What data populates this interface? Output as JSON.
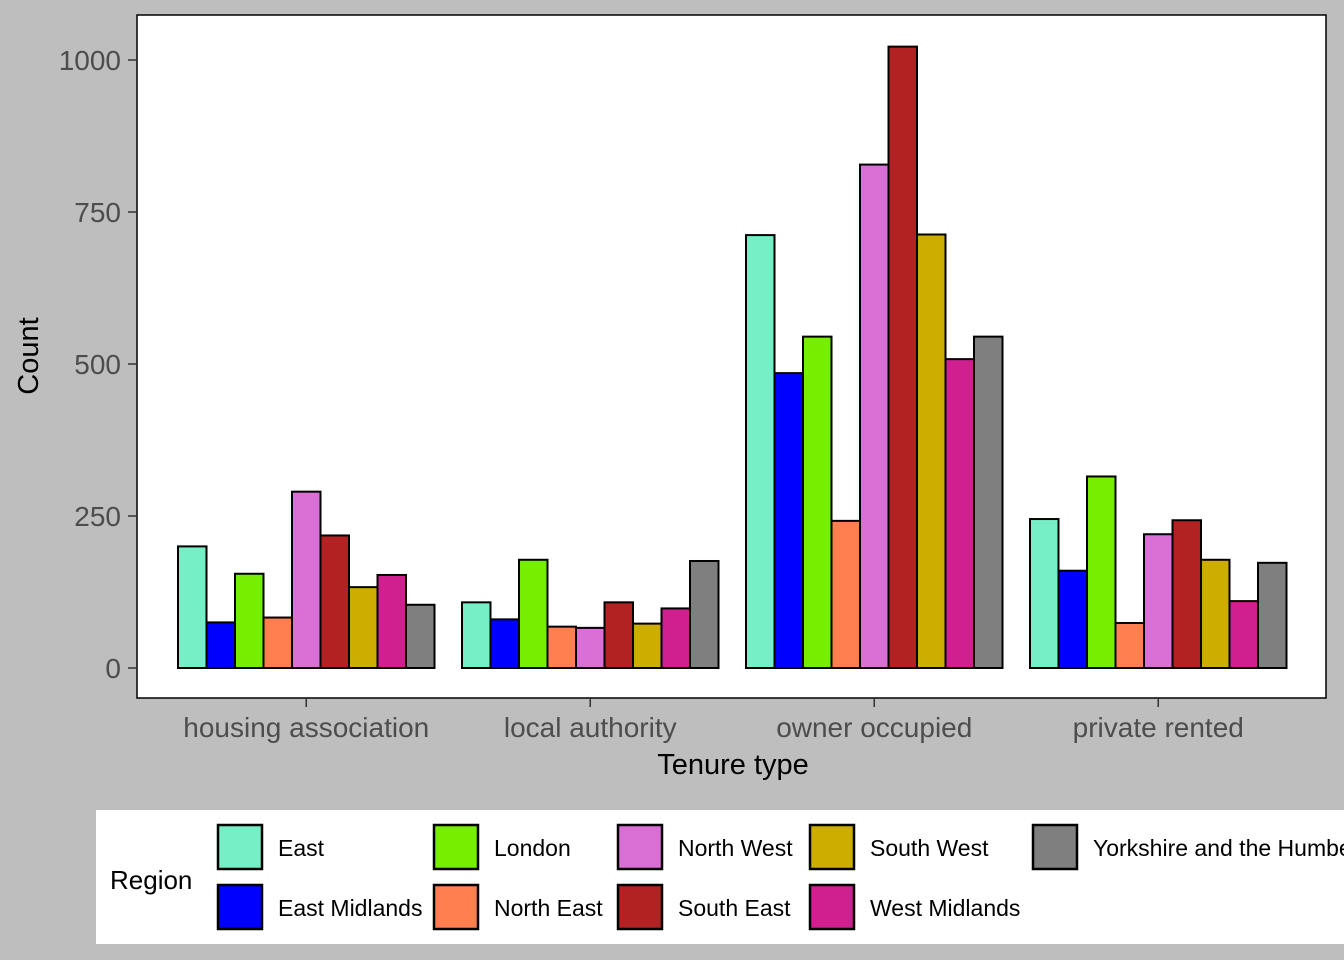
{
  "chart_data": {
    "type": "bar",
    "title": "",
    "xlabel": "Tenure type",
    "ylabel": "Count",
    "ylim": [
      -50,
      1075
    ],
    "yticks": [
      0,
      250,
      500,
      750,
      1000
    ],
    "grid": false,
    "legend_position": "bottom",
    "legend_title": "Region",
    "categories": [
      "housing association",
      "local authority",
      "owner occupied",
      "private rented"
    ],
    "series": [
      {
        "name": "East",
        "color": "#76EEC6",
        "values": [
          200,
          108,
          712,
          245
        ]
      },
      {
        "name": "East Midlands",
        "color": "#0000FF",
        "values": [
          75,
          80,
          485,
          160
        ]
      },
      {
        "name": "London",
        "color": "#76EE00",
        "values": [
          155,
          178,
          545,
          315
        ]
      },
      {
        "name": "North East",
        "color": "#FF7F50",
        "values": [
          83,
          68,
          242,
          74
        ]
      },
      {
        "name": "North West",
        "color": "#DA70D6",
        "values": [
          290,
          66,
          828,
          220
        ]
      },
      {
        "name": "South East",
        "color": "#B22222",
        "values": [
          218,
          108,
          1022,
          243
        ]
      },
      {
        "name": "South West",
        "color": "#CDAD00",
        "values": [
          133,
          73,
          713,
          178
        ]
      },
      {
        "name": "West Midlands",
        "color": "#D02090",
        "values": [
          153,
          98,
          508,
          110
        ]
      },
      {
        "name": "Yorkshire and the Humber",
        "color": "#7F7F7F",
        "values": [
          104,
          176,
          545,
          173
        ]
      }
    ]
  }
}
